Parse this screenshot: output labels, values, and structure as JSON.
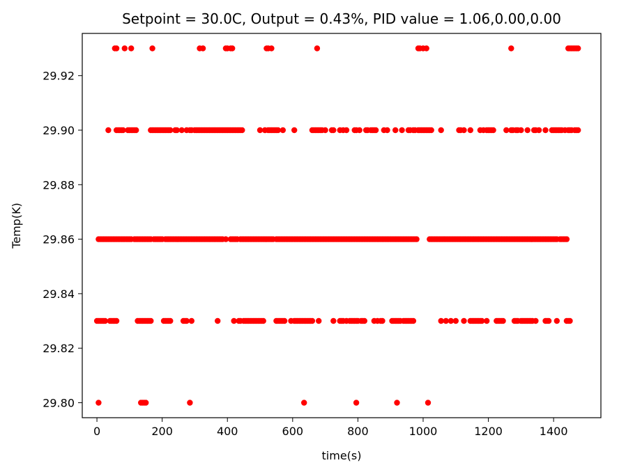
{
  "chart_data": {
    "type": "scatter",
    "title": "Setpoint = 30.0C, Output = 0.43%, PID value = 1.06,0.00,0.00",
    "xlabel": "time(s)",
    "ylabel": "Temp(K)",
    "xlim": [
      -45,
      1545
    ],
    "ylim": [
      29.7945,
      29.9355
    ],
    "x_ticks": [
      0,
      200,
      400,
      600,
      800,
      1000,
      1200,
      1400
    ],
    "x_tick_labels": [
      "0",
      "200",
      "400",
      "600",
      "800",
      "1000",
      "1200",
      "1400"
    ],
    "y_ticks": [
      29.8,
      29.82,
      29.84,
      29.86,
      29.88,
      29.9,
      29.92
    ],
    "y_tick_labels": [
      "29.80",
      "29.82",
      "29.84",
      "29.86",
      "29.88",
      "29.90",
      "29.92"
    ],
    "grid": false,
    "marker_color": "#ff0000",
    "points": [
      {
        "y": 29.93,
        "x": [
          55,
          60,
          85,
          105,
          170,
          315,
          325,
          395,
          400,
          410,
          415,
          520,
          525,
          535,
          675,
          985,
          990,
          1000,
          1010,
          1270,
          1445,
          1450,
          1455,
          1460,
          1465,
          1470,
          1475
        ]
      },
      {
        "y": 29.9,
        "x": [
          35,
          60,
          65,
          70,
          75,
          80,
          95,
          100,
          105,
          110,
          115,
          120,
          165,
          170,
          175,
          180,
          185,
          190,
          195,
          200,
          205,
          210,
          215,
          220,
          225,
          240,
          245,
          260,
          275,
          285,
          290,
          300,
          305,
          310,
          315,
          320,
          325,
          330,
          335,
          340,
          345,
          350,
          355,
          360,
          365,
          370,
          375,
          380,
          385,
          390,
          395,
          400,
          405,
          410,
          415,
          420,
          425,
          430,
          435,
          440,
          445,
          500,
          515,
          525,
          530,
          535,
          540,
          545,
          550,
          555,
          570,
          605,
          660,
          665,
          670,
          675,
          680,
          685,
          690,
          700,
          720,
          725,
          745,
          755,
          765,
          790,
          795,
          805,
          825,
          830,
          840,
          845,
          850,
          855,
          880,
          890,
          915,
          935,
          955,
          960,
          970,
          975,
          985,
          990,
          995,
          1000,
          1005,
          1010,
          1015,
          1020,
          1025,
          1055,
          1110,
          1115,
          1125,
          1145,
          1175,
          1185,
          1195,
          1200,
          1205,
          1210,
          1215,
          1255,
          1270,
          1275,
          1285,
          1290,
          1300,
          1320,
          1340,
          1345,
          1355,
          1375,
          1395,
          1400,
          1405,
          1410,
          1415,
          1420,
          1425,
          1435,
          1445,
          1450,
          1455,
          1465,
          1470,
          1475
        ]
      },
      {
        "y": 29.86,
        "x": [
          5,
          10,
          15,
          20,
          25,
          30,
          35,
          40,
          45,
          50,
          55,
          60,
          65,
          70,
          75,
          80,
          85,
          90,
          95,
          100,
          105,
          115,
          120,
          125,
          130,
          135,
          140,
          145,
          150,
          155,
          160,
          165,
          175,
          180,
          185,
          190,
          195,
          200,
          210,
          215,
          220,
          225,
          230,
          235,
          240,
          245,
          250,
          255,
          260,
          265,
          270,
          275,
          280,
          285,
          290,
          295,
          300,
          305,
          310,
          315,
          320,
          325,
          330,
          335,
          340,
          345,
          350,
          355,
          360,
          365,
          370,
          375,
          380,
          385,
          395,
          410,
          415,
          420,
          425,
          430,
          440,
          445,
          450,
          455,
          460,
          465,
          470,
          475,
          480,
          485,
          490,
          495,
          500,
          505,
          510,
          515,
          520,
          525,
          530,
          535,
          540,
          550,
          555,
          560,
          565,
          570,
          575,
          580,
          585,
          590,
          595,
          600,
          605,
          610,
          615,
          620,
          625,
          630,
          635,
          640,
          645,
          650,
          655,
          660,
          665,
          670,
          675,
          680,
          685,
          690,
          695,
          700,
          705,
          710,
          715,
          720,
          725,
          730,
          735,
          740,
          745,
          750,
          755,
          760,
          765,
          770,
          775,
          780,
          785,
          790,
          795,
          800,
          805,
          810,
          815,
          820,
          825,
          830,
          835,
          840,
          845,
          850,
          855,
          860,
          865,
          870,
          875,
          880,
          885,
          890,
          895,
          900,
          905,
          910,
          915,
          920,
          925,
          930,
          935,
          940,
          945,
          950,
          955,
          960,
          965,
          970,
          975,
          980,
          1020,
          1025,
          1030,
          1035,
          1040,
          1045,
          1050,
          1055,
          1060,
          1065,
          1070,
          1075,
          1080,
          1085,
          1090,
          1095,
          1100,
          1105,
          1110,
          1115,
          1120,
          1125,
          1130,
          1135,
          1140,
          1145,
          1150,
          1155,
          1160,
          1165,
          1170,
          1175,
          1180,
          1185,
          1190,
          1195,
          1200,
          1205,
          1210,
          1215,
          1220,
          1225,
          1230,
          1235,
          1240,
          1245,
          1250,
          1255,
          1260,
          1265,
          1270,
          1275,
          1280,
          1285,
          1290,
          1295,
          1300,
          1305,
          1310,
          1315,
          1320,
          1325,
          1330,
          1335,
          1340,
          1345,
          1350,
          1355,
          1360,
          1365,
          1370,
          1375,
          1380,
          1385,
          1390,
          1395,
          1400,
          1405,
          1410,
          1420,
          1425,
          1430,
          1435,
          1440
        ]
      },
      {
        "y": 29.83,
        "x": [
          0,
          5,
          10,
          15,
          20,
          25,
          40,
          45,
          50,
          55,
          60,
          125,
          130,
          135,
          140,
          145,
          150,
          155,
          160,
          165,
          205,
          210,
          215,
          220,
          225,
          265,
          270,
          275,
          290,
          370,
          420,
          435,
          440,
          450,
          455,
          460,
          465,
          470,
          475,
          480,
          485,
          490,
          495,
          500,
          505,
          510,
          550,
          555,
          560,
          565,
          570,
          575,
          595,
          605,
          610,
          615,
          620,
          625,
          630,
          635,
          640,
          645,
          650,
          655,
          660,
          680,
          725,
          745,
          750,
          755,
          765,
          775,
          780,
          785,
          790,
          795,
          800,
          810,
          815,
          820,
          850,
          860,
          870,
          875,
          905,
          910,
          915,
          920,
          925,
          930,
          940,
          945,
          950,
          955,
          960,
          965,
          970,
          1055,
          1070,
          1085,
          1100,
          1125,
          1145,
          1150,
          1155,
          1160,
          1165,
          1170,
          1175,
          1180,
          1195,
          1225,
          1230,
          1235,
          1240,
          1245,
          1280,
          1285,
          1290,
          1300,
          1305,
          1310,
          1315,
          1320,
          1325,
          1330,
          1335,
          1345,
          1375,
          1380,
          1385,
          1410,
          1440,
          1445,
          1450
        ]
      },
      {
        "y": 29.8,
        "x": [
          5,
          135,
          140,
          145,
          150,
          285,
          635,
          795,
          920,
          1015
        ]
      }
    ]
  }
}
